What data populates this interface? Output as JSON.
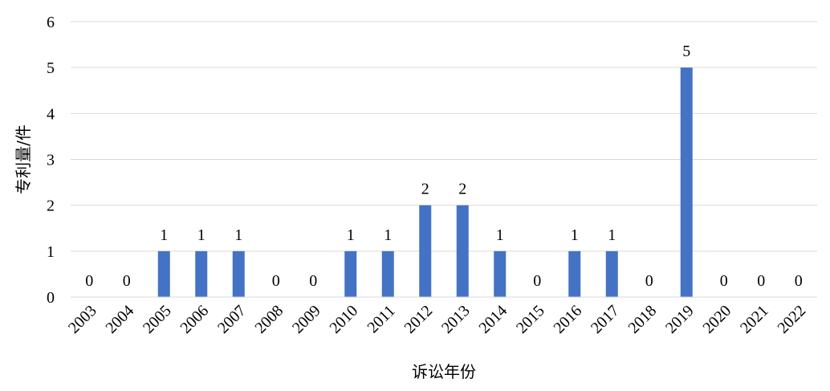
{
  "chart_data": {
    "type": "bar",
    "title": "",
    "xlabel": "诉讼年份",
    "ylabel": "专利量/件",
    "ylim": [
      0,
      6
    ],
    "yticks": [
      0,
      1,
      2,
      3,
      4,
      5,
      6
    ],
    "grid": true,
    "legend": "none",
    "bar_color": "#4472C4",
    "categories": [
      "2003",
      "2004",
      "2005",
      "2006",
      "2007",
      "2008",
      "2009",
      "2010",
      "2011",
      "2012",
      "2013",
      "2014",
      "2015",
      "2016",
      "2017",
      "2018",
      "2019",
      "2020",
      "2021",
      "2022"
    ],
    "values": [
      0,
      0,
      1,
      1,
      1,
      0,
      0,
      1,
      1,
      2,
      2,
      1,
      0,
      1,
      1,
      0,
      5,
      0,
      0,
      0
    ],
    "data_labels": [
      "0",
      "0",
      "1",
      "1",
      "1",
      "0",
      "0",
      "1",
      "1",
      "2",
      "2",
      "1",
      "0",
      "1",
      "1",
      "0",
      "5",
      "0",
      "0",
      "0"
    ]
  }
}
